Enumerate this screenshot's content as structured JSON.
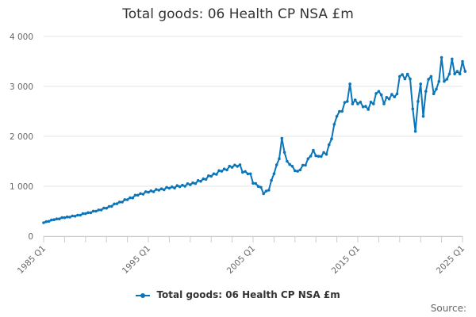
{
  "chart_data": {
    "type": "line",
    "title": "Total goods: 06 Health CP NSA £m",
    "xlabel": "",
    "ylabel": "",
    "x_start_year": 1985,
    "x_end_year": 2025,
    "points_per_year": 4,
    "ylim": [
      0,
      4000
    ],
    "yticks": [
      0,
      1000,
      2000,
      3000,
      4000
    ],
    "ytick_labels": [
      "0",
      "1 000",
      "2 000",
      "3 000",
      "4 000"
    ],
    "xtick_labels": [
      "1985 Q1",
      "1995 Q1",
      "2005 Q1",
      "2015 Q1",
      "2025 Q1"
    ],
    "xtick_years": [
      1985,
      1995,
      2005,
      2015,
      2025
    ],
    "legend_position": "bottom-center",
    "series": [
      {
        "name": "Total goods: 06 Health CP NSA £m",
        "color": "#0a75b8",
        "anchors": [
          [
            1985.0,
            270
          ],
          [
            1986.0,
            330
          ],
          [
            1987.0,
            370
          ],
          [
            1988.0,
            400
          ],
          [
            1989.0,
            450
          ],
          [
            1990.0,
            500
          ],
          [
            1991.0,
            560
          ],
          [
            1992.0,
            650
          ],
          [
            1993.0,
            730
          ],
          [
            1994.0,
            820
          ],
          [
            1995.0,
            880
          ],
          [
            1996.0,
            920
          ],
          [
            1997.0,
            960
          ],
          [
            1998.0,
            990
          ],
          [
            1999.0,
            1030
          ],
          [
            2000.0,
            1100
          ],
          [
            2001.0,
            1200
          ],
          [
            2002.0,
            1300
          ],
          [
            2003.0,
            1380
          ],
          [
            2003.75,
            1430
          ],
          [
            2004.0,
            1280
          ],
          [
            2004.75,
            1250
          ],
          [
            2005.0,
            1060
          ],
          [
            2005.75,
            980
          ],
          [
            2006.0,
            850
          ],
          [
            2006.5,
            920
          ],
          [
            2007.0,
            1250
          ],
          [
            2007.5,
            1550
          ],
          [
            2007.75,
            1960
          ],
          [
            2008.25,
            1500
          ],
          [
            2008.75,
            1400
          ],
          [
            2009.25,
            1300
          ],
          [
            2010.0,
            1420
          ],
          [
            2010.75,
            1720
          ],
          [
            2011.25,
            1600
          ],
          [
            2012.0,
            1640
          ],
          [
            2012.5,
            1950
          ],
          [
            2013.0,
            2400
          ],
          [
            2013.5,
            2500
          ],
          [
            2014.0,
            2700
          ],
          [
            2014.25,
            3050
          ],
          [
            2014.5,
            2650
          ],
          [
            2015.0,
            2650
          ],
          [
            2015.75,
            2600
          ],
          [
            2016.5,
            2650
          ],
          [
            2017.0,
            2900
          ],
          [
            2017.5,
            2650
          ],
          [
            2018.0,
            2750
          ],
          [
            2018.75,
            2850
          ],
          [
            2019.0,
            3200
          ],
          [
            2019.5,
            3150
          ],
          [
            2020.0,
            3150
          ],
          [
            2020.25,
            2550
          ],
          [
            2020.5,
            2100
          ],
          [
            2020.75,
            2700
          ],
          [
            2021.0,
            3050
          ],
          [
            2021.25,
            2400
          ],
          [
            2021.5,
            2900
          ],
          [
            2022.0,
            3200
          ],
          [
            2022.25,
            2850
          ],
          [
            2022.75,
            3100
          ],
          [
            2023.0,
            3580
          ],
          [
            2023.25,
            3100
          ],
          [
            2023.75,
            3250
          ],
          [
            2024.0,
            3550
          ],
          [
            2024.25,
            3250
          ],
          [
            2024.5,
            3300
          ],
          [
            2024.75,
            3250
          ],
          [
            2025.0,
            3500
          ],
          [
            2025.25,
            3300
          ]
        ]
      }
    ]
  },
  "source_label": "Source:"
}
